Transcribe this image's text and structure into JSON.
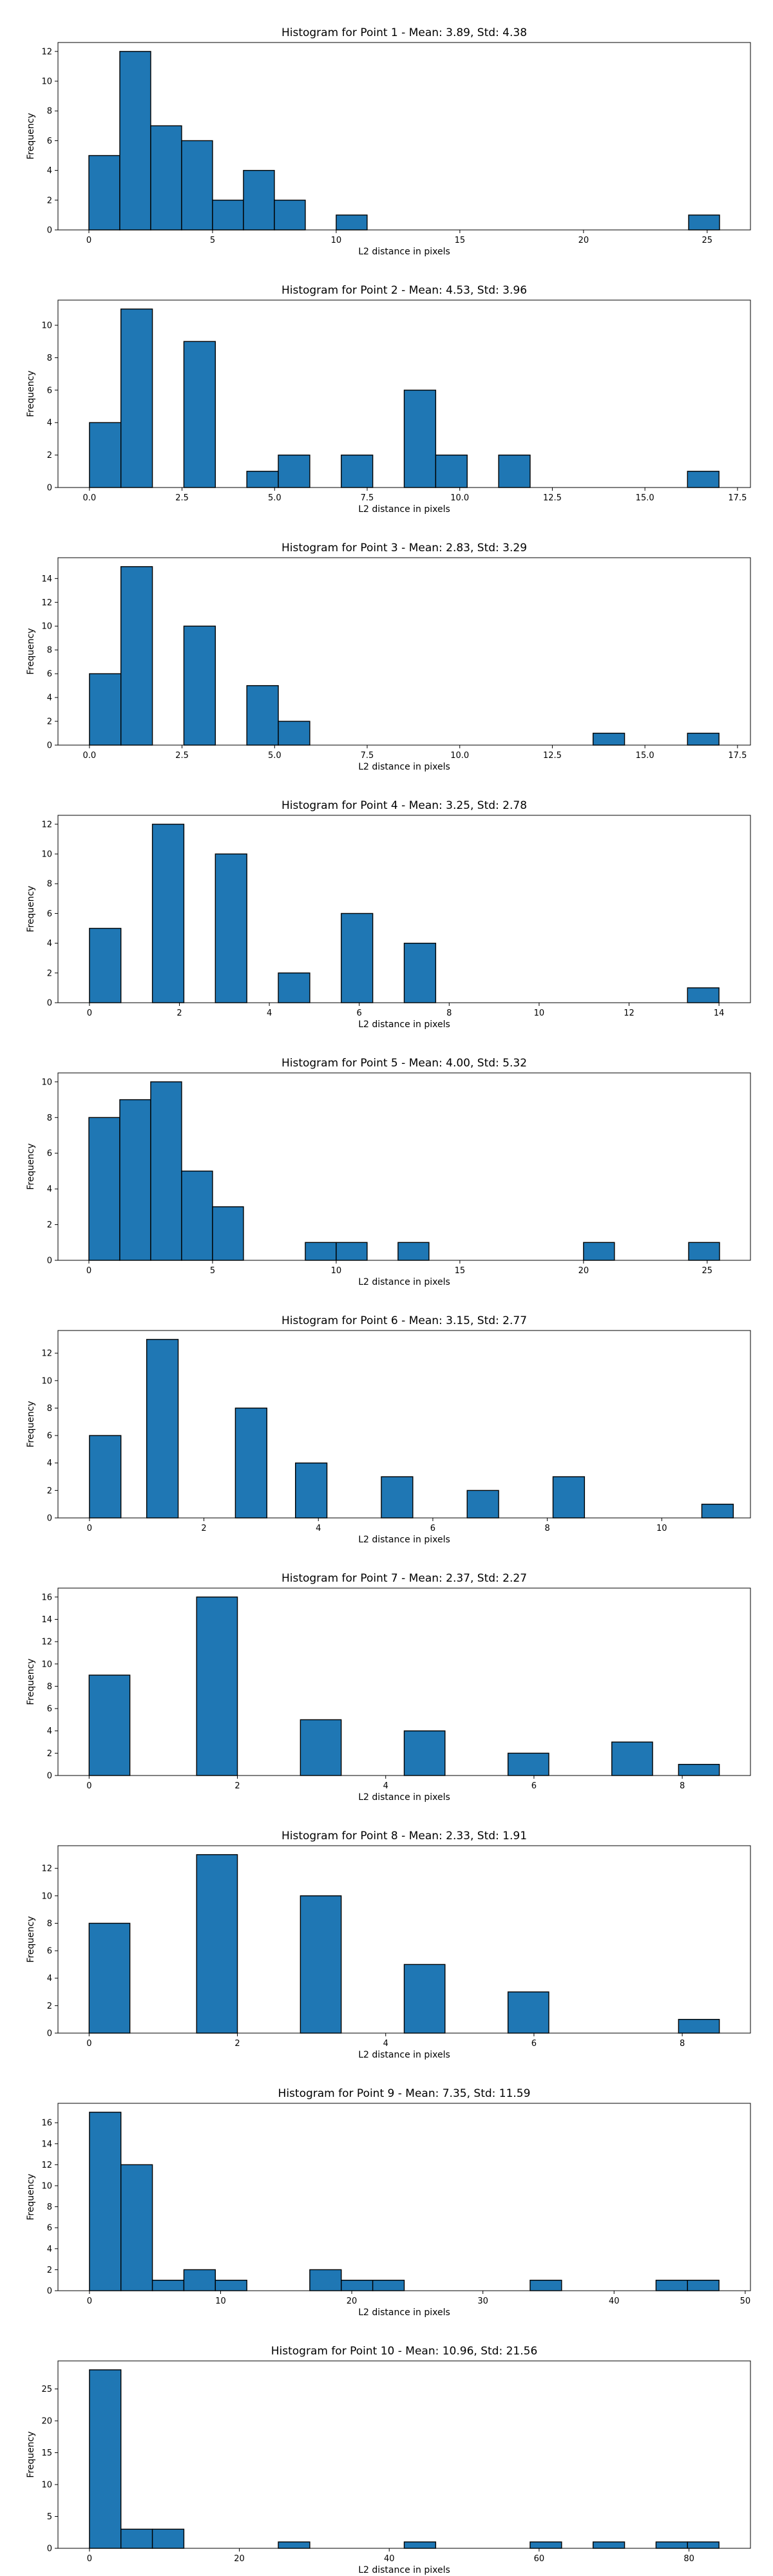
{
  "figure": {
    "background": "#ffffff",
    "bar_color": "#1f77b4",
    "edge_color": "#000000"
  },
  "chart_data": [
    {
      "type": "histogram",
      "title": "Histogram for Point 1 - Mean: 3.89, Std: 4.38",
      "xlabel": "L2 distance in pixels",
      "ylabel": "Frequency",
      "xlim": [
        -1.25,
        26.75
      ],
      "ylim": [
        0,
        12.6
      ],
      "xticks": [
        0,
        5,
        10,
        15,
        20,
        25
      ],
      "yticks": [
        0,
        2,
        4,
        6,
        8,
        10,
        12
      ],
      "bins": [
        {
          "x0": 0.0,
          "x1": 1.25,
          "count": 5
        },
        {
          "x0": 1.25,
          "x1": 2.5,
          "count": 12
        },
        {
          "x0": 2.5,
          "x1": 3.75,
          "count": 7
        },
        {
          "x0": 3.75,
          "x1": 5.0,
          "count": 6
        },
        {
          "x0": 5.0,
          "x1": 6.25,
          "count": 2
        },
        {
          "x0": 6.25,
          "x1": 7.5,
          "count": 4
        },
        {
          "x0": 7.5,
          "x1": 8.75,
          "count": 2
        },
        {
          "x0": 10.0,
          "x1": 11.25,
          "count": 1
        },
        {
          "x0": 24.25,
          "x1": 25.5,
          "count": 1
        }
      ]
    },
    {
      "type": "histogram",
      "title": "Histogram for Point 2 - Mean: 4.53, Std: 3.96",
      "xlabel": "L2 distance in pixels",
      "ylabel": "Frequency",
      "xlim": [
        -0.85,
        17.85
      ],
      "ylim": [
        0,
        11.55
      ],
      "xticks": [
        0.0,
        2.5,
        5.0,
        7.5,
        10.0,
        12.5,
        15.0,
        17.5
      ],
      "xtick_labels": [
        "0.0",
        "2.5",
        "5.0",
        "7.5",
        "10.0",
        "12.5",
        "15.0",
        "17.5"
      ],
      "yticks": [
        0,
        2,
        4,
        6,
        8,
        10
      ],
      "bins": [
        {
          "x0": 0.0,
          "x1": 0.85,
          "count": 4
        },
        {
          "x0": 0.85,
          "x1": 1.7,
          "count": 11
        },
        {
          "x0": 2.55,
          "x1": 3.4,
          "count": 9
        },
        {
          "x0": 4.25,
          "x1": 5.1,
          "count": 1
        },
        {
          "x0": 5.1,
          "x1": 5.95,
          "count": 2
        },
        {
          "x0": 6.8,
          "x1": 7.65,
          "count": 2
        },
        {
          "x0": 8.5,
          "x1": 9.35,
          "count": 6
        },
        {
          "x0": 9.35,
          "x1": 10.2,
          "count": 2
        },
        {
          "x0": 11.05,
          "x1": 11.9,
          "count": 2
        },
        {
          "x0": 16.15,
          "x1": 17.0,
          "count": 1
        }
      ]
    },
    {
      "type": "histogram",
      "title": "Histogram for Point 3 - Mean: 2.83, Std: 3.29",
      "xlabel": "L2 distance in pixels",
      "ylabel": "Frequency",
      "xlim": [
        -0.85,
        17.85
      ],
      "ylim": [
        0,
        15.75
      ],
      "xticks": [
        0.0,
        2.5,
        5.0,
        7.5,
        10.0,
        12.5,
        15.0,
        17.5
      ],
      "xtick_labels": [
        "0.0",
        "2.5",
        "5.0",
        "7.5",
        "10.0",
        "12.5",
        "15.0",
        "17.5"
      ],
      "yticks": [
        0,
        2,
        4,
        6,
        8,
        10,
        12,
        14
      ],
      "bins": [
        {
          "x0": 0.0,
          "x1": 0.85,
          "count": 6
        },
        {
          "x0": 0.85,
          "x1": 1.7,
          "count": 15
        },
        {
          "x0": 2.55,
          "x1": 3.4,
          "count": 10
        },
        {
          "x0": 4.25,
          "x1": 5.1,
          "count": 5
        },
        {
          "x0": 5.1,
          "x1": 5.95,
          "count": 2
        },
        {
          "x0": 13.6,
          "x1": 14.45,
          "count": 1
        },
        {
          "x0": 16.15,
          "x1": 17.0,
          "count": 1
        }
      ]
    },
    {
      "type": "histogram",
      "title": "Histogram for Point 4 - Mean: 3.25, Std: 2.78",
      "xlabel": "L2 distance in pixels",
      "ylabel": "Frequency",
      "xlim": [
        -0.7,
        14.7
      ],
      "ylim": [
        0,
        12.6
      ],
      "xticks": [
        0,
        2,
        4,
        6,
        8,
        10,
        12,
        14
      ],
      "yticks": [
        0,
        2,
        4,
        6,
        8,
        10,
        12
      ],
      "bins": [
        {
          "x0": 0.0,
          "x1": 0.7,
          "count": 5
        },
        {
          "x0": 1.4,
          "x1": 2.1,
          "count": 12
        },
        {
          "x0": 2.8,
          "x1": 3.5,
          "count": 10
        },
        {
          "x0": 4.2,
          "x1": 4.9,
          "count": 2
        },
        {
          "x0": 5.6,
          "x1": 6.3,
          "count": 6
        },
        {
          "x0": 7.0,
          "x1": 7.7,
          "count": 4
        },
        {
          "x0": 13.3,
          "x1": 14.0,
          "count": 1
        }
      ]
    },
    {
      "type": "histogram",
      "title": "Histogram for Point 5 - Mean: 4.00, Std: 5.32",
      "xlabel": "L2 distance in pixels",
      "ylabel": "Frequency",
      "xlim": [
        -1.25,
        26.75
      ],
      "ylim": [
        0,
        10.5
      ],
      "xticks": [
        0,
        5,
        10,
        15,
        20,
        25
      ],
      "yticks": [
        0,
        2,
        4,
        6,
        8,
        10
      ],
      "bins": [
        {
          "x0": 0.0,
          "x1": 1.25,
          "count": 8
        },
        {
          "x0": 1.25,
          "x1": 2.5,
          "count": 9
        },
        {
          "x0": 2.5,
          "x1": 3.75,
          "count": 10
        },
        {
          "x0": 3.75,
          "x1": 5.0,
          "count": 5
        },
        {
          "x0": 5.0,
          "x1": 6.25,
          "count": 3
        },
        {
          "x0": 8.75,
          "x1": 10.0,
          "count": 1
        },
        {
          "x0": 10.0,
          "x1": 11.25,
          "count": 1
        },
        {
          "x0": 12.5,
          "x1": 13.75,
          "count": 1
        },
        {
          "x0": 20.0,
          "x1": 21.25,
          "count": 1
        },
        {
          "x0": 24.25,
          "x1": 25.5,
          "count": 1
        }
      ]
    },
    {
      "type": "histogram",
      "title": "Histogram for Point 6 - Mean: 3.15, Std: 2.77",
      "xlabel": "L2 distance in pixels",
      "ylabel": "Frequency",
      "xlim": [
        -0.55,
        11.55
      ],
      "ylim": [
        0,
        13.65
      ],
      "xticks": [
        0,
        2,
        4,
        6,
        8,
        10
      ],
      "yticks": [
        0,
        2,
        4,
        6,
        8,
        10,
        12
      ],
      "bins": [
        {
          "x0": 0.0,
          "x1": 0.55,
          "count": 6
        },
        {
          "x0": 1.0,
          "x1": 1.55,
          "count": 13
        },
        {
          "x0": 2.55,
          "x1": 3.1,
          "count": 8
        },
        {
          "x0": 3.6,
          "x1": 4.15,
          "count": 4
        },
        {
          "x0": 5.1,
          "x1": 5.65,
          "count": 3
        },
        {
          "x0": 6.6,
          "x1": 7.15,
          "count": 2
        },
        {
          "x0": 8.1,
          "x1": 8.65,
          "count": 3
        },
        {
          "x0": 10.7,
          "x1": 11.25,
          "count": 1
        }
      ]
    },
    {
      "type": "histogram",
      "title": "Histogram for Point 7 - Mean: 2.37, Std: 2.27",
      "xlabel": "L2 distance in pixels",
      "ylabel": "Frequency",
      "xlim": [
        -0.42,
        8.92
      ],
      "ylim": [
        0,
        16.8
      ],
      "xticks": [
        0,
        2,
        4,
        6,
        8
      ],
      "yticks": [
        0,
        2,
        4,
        6,
        8,
        10,
        12,
        14,
        16
      ],
      "bins": [
        {
          "x0": 0.0,
          "x1": 0.55,
          "count": 9
        },
        {
          "x0": 1.45,
          "x1": 2.0,
          "count": 16
        },
        {
          "x0": 2.85,
          "x1": 3.4,
          "count": 5
        },
        {
          "x0": 4.25,
          "x1": 4.8,
          "count": 4
        },
        {
          "x0": 5.65,
          "x1": 6.2,
          "count": 2
        },
        {
          "x0": 7.05,
          "x1": 7.6,
          "count": 3
        },
        {
          "x0": 7.95,
          "x1": 8.5,
          "count": 1
        }
      ]
    },
    {
      "type": "histogram",
      "title": "Histogram for Point 8 - Mean: 2.33, Std: 1.91",
      "xlabel": "L2 distance in pixels",
      "ylabel": "Frequency",
      "xlim": [
        -0.42,
        8.92
      ],
      "ylim": [
        0,
        13.65
      ],
      "xticks": [
        0,
        2,
        4,
        6,
        8
      ],
      "yticks": [
        0,
        2,
        4,
        6,
        8,
        10,
        12
      ],
      "bins": [
        {
          "x0": 0.0,
          "x1": 0.55,
          "count": 8
        },
        {
          "x0": 1.45,
          "x1": 2.0,
          "count": 13
        },
        {
          "x0": 2.85,
          "x1": 3.4,
          "count": 10
        },
        {
          "x0": 4.25,
          "x1": 4.8,
          "count": 5
        },
        {
          "x0": 5.65,
          "x1": 6.2,
          "count": 3
        },
        {
          "x0": 7.95,
          "x1": 8.5,
          "count": 1
        }
      ]
    },
    {
      "type": "histogram",
      "title": "Histogram for Point 9 - Mean: 7.35, Std: 11.59",
      "xlabel": "L2 distance in pixels",
      "ylabel": "Frequency",
      "xlim": [
        -2.4,
        50.4
      ],
      "ylim": [
        0,
        17.85
      ],
      "xticks": [
        0,
        10,
        20,
        30,
        40,
        50
      ],
      "yticks": [
        0,
        2,
        4,
        6,
        8,
        10,
        12,
        14,
        16
      ],
      "bins": [
        {
          "x0": 0.0,
          "x1": 2.4,
          "count": 17
        },
        {
          "x0": 2.4,
          "x1": 4.8,
          "count": 12
        },
        {
          "x0": 4.8,
          "x1": 7.2,
          "count": 1
        },
        {
          "x0": 7.2,
          "x1": 9.6,
          "count": 2
        },
        {
          "x0": 9.6,
          "x1": 12.0,
          "count": 1
        },
        {
          "x0": 16.8,
          "x1": 19.2,
          "count": 2
        },
        {
          "x0": 19.2,
          "x1": 21.6,
          "count": 1
        },
        {
          "x0": 21.6,
          "x1": 24.0,
          "count": 1
        },
        {
          "x0": 33.6,
          "x1": 36.0,
          "count": 1
        },
        {
          "x0": 43.2,
          "x1": 45.6,
          "count": 1
        },
        {
          "x0": 45.6,
          "x1": 48.0,
          "count": 1
        }
      ]
    },
    {
      "type": "histogram",
      "title": "Histogram for Point 10 - Mean: 10.96, Std: 21.56",
      "xlabel": "L2 distance in pixels",
      "ylabel": "Frequency",
      "xlim": [
        -4.2,
        88.2
      ],
      "ylim": [
        0,
        29.4
      ],
      "xticks": [
        0,
        20,
        40,
        60,
        80
      ],
      "yticks": [
        0,
        5,
        10,
        15,
        20,
        25
      ],
      "bins": [
        {
          "x0": 0.0,
          "x1": 4.2,
          "count": 28
        },
        {
          "x0": 4.2,
          "x1": 8.4,
          "count": 3
        },
        {
          "x0": 8.4,
          "x1": 12.6,
          "count": 3
        },
        {
          "x0": 25.2,
          "x1": 29.4,
          "count": 1
        },
        {
          "x0": 42.0,
          "x1": 46.2,
          "count": 1
        },
        {
          "x0": 58.8,
          "x1": 63.0,
          "count": 1
        },
        {
          "x0": 67.2,
          "x1": 71.4,
          "count": 1
        },
        {
          "x0": 75.6,
          "x1": 79.8,
          "count": 1
        },
        {
          "x0": 79.8,
          "x1": 84.0,
          "count": 1
        }
      ]
    }
  ]
}
